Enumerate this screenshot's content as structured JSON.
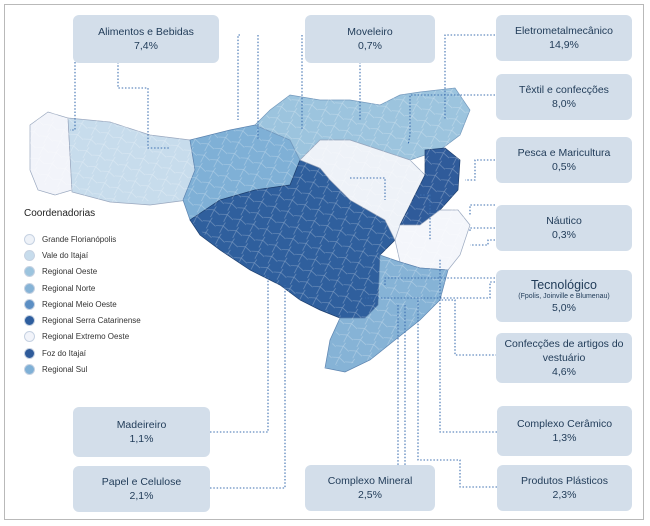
{
  "legend": {
    "title": "Coordenadorias",
    "items": [
      {
        "label": "Grande Florianópolis",
        "color": "#eef2f8"
      },
      {
        "label": "Vale do Itajaí",
        "color": "#c7dcec"
      },
      {
        "label": "Regional Oeste",
        "color": "#9cc4de"
      },
      {
        "label": "Regional Norte",
        "color": "#86b3d6"
      },
      {
        "label": "Regional Meio Oeste",
        "color": "#5c8fc4"
      },
      {
        "label": "Regional Serra Catarinense",
        "color": "#2e5e9e"
      },
      {
        "label": "Regional Extremo Oeste",
        "color": "#f2f4fa"
      },
      {
        "label": "Foz do Itajaí",
        "color": "#2f5b9a"
      },
      {
        "label": "Regional Sul",
        "color": "#7fb0d6"
      }
    ]
  },
  "sectors": {
    "alimentos": {
      "name": "Alimentos e Bebidas",
      "value": "7,4%"
    },
    "moveleiro": {
      "name": "Moveleiro",
      "value": "0,7%"
    },
    "eletro": {
      "name": "Eletrometalmecânico",
      "value": "14,9%"
    },
    "textil": {
      "name": "Têxtil e confecções",
      "value": "8,0%"
    },
    "pesca": {
      "name": "Pesca e Maricultura",
      "value": "0,5%"
    },
    "nautico": {
      "name": "Náutico",
      "value": "0,3%"
    },
    "tecnologico": {
      "name": "Tecnológico",
      "sub": "(Fpolis, Joinville e Blumenau)",
      "value": "5,0%"
    },
    "confeccoes": {
      "name": "Confecções de artigos do",
      "name2": "vestuário",
      "value": "4,6%"
    },
    "ceramico": {
      "name": "Complexo Cerâmico",
      "value": "1,3%"
    },
    "plasticos": {
      "name": "Produtos Plásticos",
      "value": "2,3%"
    },
    "madeireiro": {
      "name": "Madeireiro",
      "value": "1,1%"
    },
    "papel": {
      "name": "Papel e Celulose",
      "value": "2,1%"
    },
    "mineral": {
      "name": "Complexo Mineral",
      "value": "2,5%"
    }
  }
}
